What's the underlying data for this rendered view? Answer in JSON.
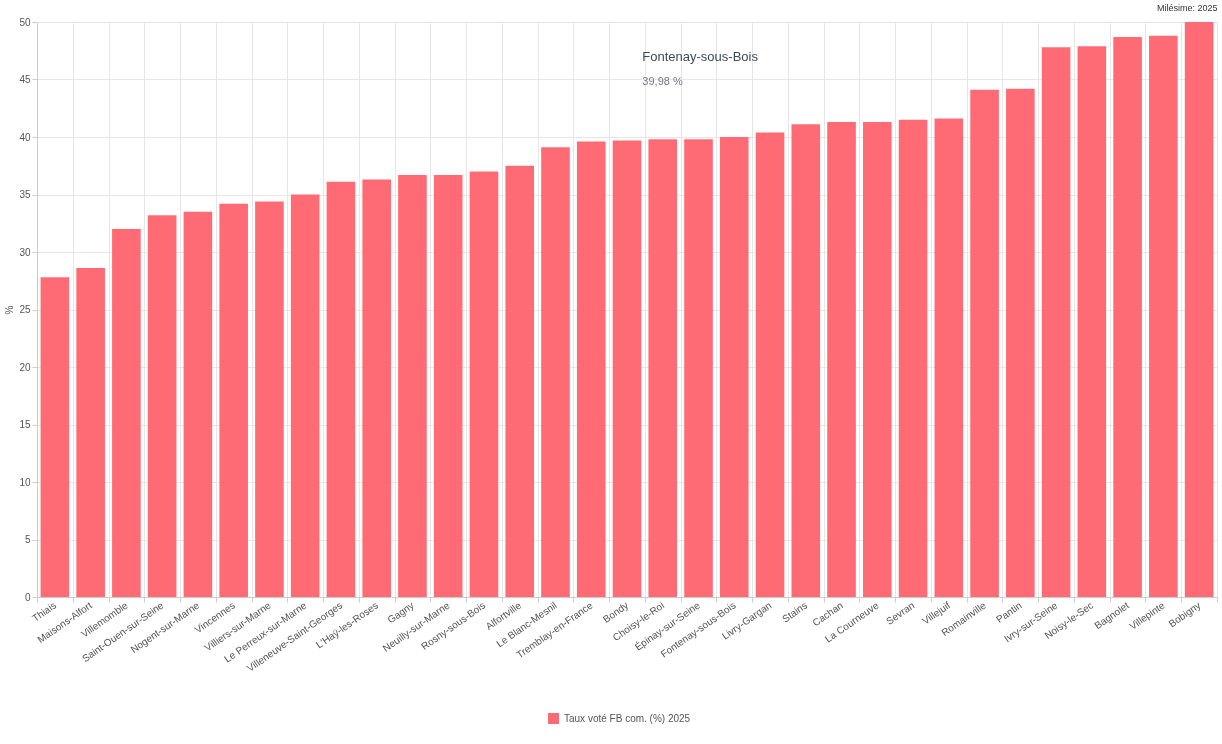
{
  "chart_data": {
    "type": "bar",
    "ylabel": "%",
    "legend": "bottom",
    "grid": true,
    "categories": [
      "Thiais",
      "Maisons-Alfort",
      "Villemomble",
      "Saint-Ouen-sur-Seine",
      "Nogent-sur-Marne",
      "Vincennes",
      "Villiers-sur-Marne",
      "Le Perreux-sur-Marne",
      "Villeneuve-Saint-Georges",
      "L'Haÿ-les-Roses",
      "Gagny",
      "Neuilly-sur-Marne",
      "Rosny-sous-Bois",
      "Alfortville",
      "Le Blanc-Mesnil",
      "Tremblay-en-France",
      "Bondy",
      "Choisy-le-Roi",
      "Épinay-sur-Seine",
      "Fontenay-sous-Bois",
      "Livry-Gargan",
      "Stains",
      "Cachan",
      "La Courneuve",
      "Sevran",
      "Villejuif",
      "Romainville",
      "Pantin",
      "Ivry-sur-Seine",
      "Noisy-le-Sec",
      "Bagnolet",
      "Villepinte",
      "Bobigny"
    ],
    "series": [
      {
        "name": "Taux voté FB com. (%)  2025",
        "color": "#ff6b74",
        "values": [
          27.8,
          28.6,
          32.0,
          33.2,
          33.5,
          34.2,
          34.4,
          35.0,
          36.1,
          36.3,
          36.7,
          36.7,
          37.0,
          37.5,
          39.1,
          39.6,
          39.7,
          39.8,
          39.8,
          40.0,
          40.4,
          41.1,
          41.3,
          41.3,
          41.5,
          41.6,
          44.1,
          44.2,
          47.8,
          47.9,
          48.7,
          48.8,
          50.0
        ]
      }
    ],
    "ylim": [
      0,
      50
    ],
    "yticks": [
      0,
      5,
      10,
      15,
      20,
      25,
      30,
      35,
      40,
      45,
      50
    ],
    "annotations": [
      "Milésime: 2025",
      "Fontenay-sous-Bois",
      "39,98 %"
    ]
  }
}
